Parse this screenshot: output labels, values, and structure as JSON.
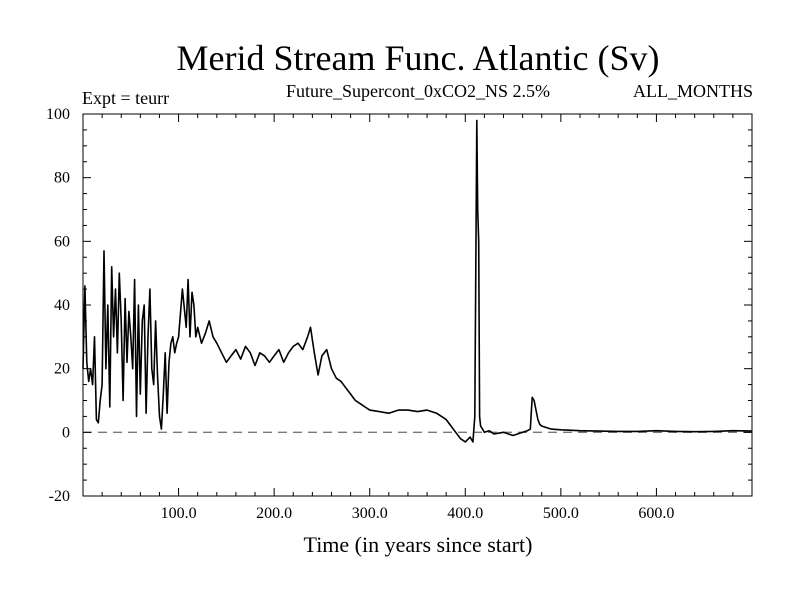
{
  "chart_data": {
    "type": "line",
    "title": "Merid Stream Func. Atlantic (Sv)",
    "subtitle_left": "Expt = teurr",
    "subtitle_center": "Future_Supercont_0xCO2_NS 2.5%",
    "subtitle_right": "ALL_MONTHS",
    "xlabel": "Time (in years since start)",
    "ylabel": "",
    "xlim": [
      0,
      700
    ],
    "ylim": [
      -20,
      100
    ],
    "x_ticks": [
      100,
      200,
      300,
      400,
      500,
      600
    ],
    "x_tick_labels": [
      "100.0",
      "200.0",
      "300.0",
      "400.0",
      "500.0",
      "600.0"
    ],
    "y_ticks": [
      -20,
      0,
      20,
      40,
      60,
      80,
      100
    ],
    "y_tick_labels": [
      "-20",
      "0",
      "20",
      "40",
      "60",
      "80",
      "100"
    ],
    "reference_line": {
      "y": 0,
      "style": "dashed"
    },
    "series": [
      {
        "x": [
          0,
          2,
          4,
          6,
          8,
          10,
          12,
          14,
          16,
          18,
          20,
          22,
          24,
          26,
          28,
          30,
          32,
          34,
          36,
          38,
          40,
          42,
          44,
          46,
          48,
          50,
          52,
          54,
          56,
          58,
          60,
          62,
          64,
          66,
          68,
          70,
          72,
          74,
          76,
          78,
          80,
          82,
          84,
          86,
          88,
          90,
          92,
          94,
          96,
          98,
          100,
          104,
          108,
          110,
          112,
          114,
          116,
          118,
          120,
          124,
          128,
          132,
          136,
          140,
          145,
          150,
          155,
          160,
          165,
          170,
          175,
          180,
          185,
          190,
          195,
          200,
          205,
          210,
          215,
          220,
          225,
          230,
          235,
          238,
          242,
          246,
          250,
          255,
          260,
          265,
          270,
          275,
          280,
          285,
          290,
          295,
          300,
          310,
          320,
          330,
          340,
          350,
          360,
          370,
          380,
          385,
          390,
          395,
          400,
          405,
          408,
          410,
          412,
          413,
          414,
          415,
          416,
          418,
          420,
          425,
          430,
          440,
          450,
          460,
          465,
          468,
          470,
          472,
          474,
          476,
          478,
          480,
          485,
          490,
          500,
          520,
          540,
          560,
          580,
          600,
          620,
          640,
          660,
          680,
          700
        ],
        "values": [
          20,
          46,
          22,
          16,
          20,
          15,
          30,
          4,
          3,
          10,
          15,
          57,
          20,
          40,
          8,
          52,
          30,
          45,
          25,
          50,
          35,
          10,
          42,
          22,
          38,
          30,
          20,
          48,
          5,
          40,
          12,
          35,
          40,
          6,
          30,
          45,
          20,
          15,
          35,
          18,
          5,
          1,
          12,
          25,
          6,
          22,
          28,
          30,
          25,
          28,
          30,
          45,
          33,
          48,
          30,
          44,
          40,
          30,
          33,
          28,
          31,
          35,
          30,
          28,
          25,
          22,
          24,
          26,
          23,
          27,
          25,
          21,
          25,
          24,
          22,
          24,
          26,
          22,
          25,
          27,
          28,
          26,
          30,
          33,
          25,
          18,
          24,
          26,
          20,
          17,
          16,
          14,
          12,
          10,
          9,
          8,
          7,
          6.5,
          6,
          7,
          7,
          6.5,
          7,
          6,
          4,
          2,
          0,
          -2,
          -3,
          -1.5,
          -3,
          5,
          98,
          70,
          60,
          5,
          2,
          1,
          0,
          0.5,
          -0.5,
          0,
          -1,
          0,
          0.5,
          1,
          11,
          10,
          7,
          4,
          2.5,
          2,
          1.5,
          1,
          0.8,
          0.5,
          0.4,
          0.3,
          0.3,
          0.5,
          0.3,
          0.2,
          0.3,
          0.5,
          0.4
        ]
      }
    ]
  }
}
